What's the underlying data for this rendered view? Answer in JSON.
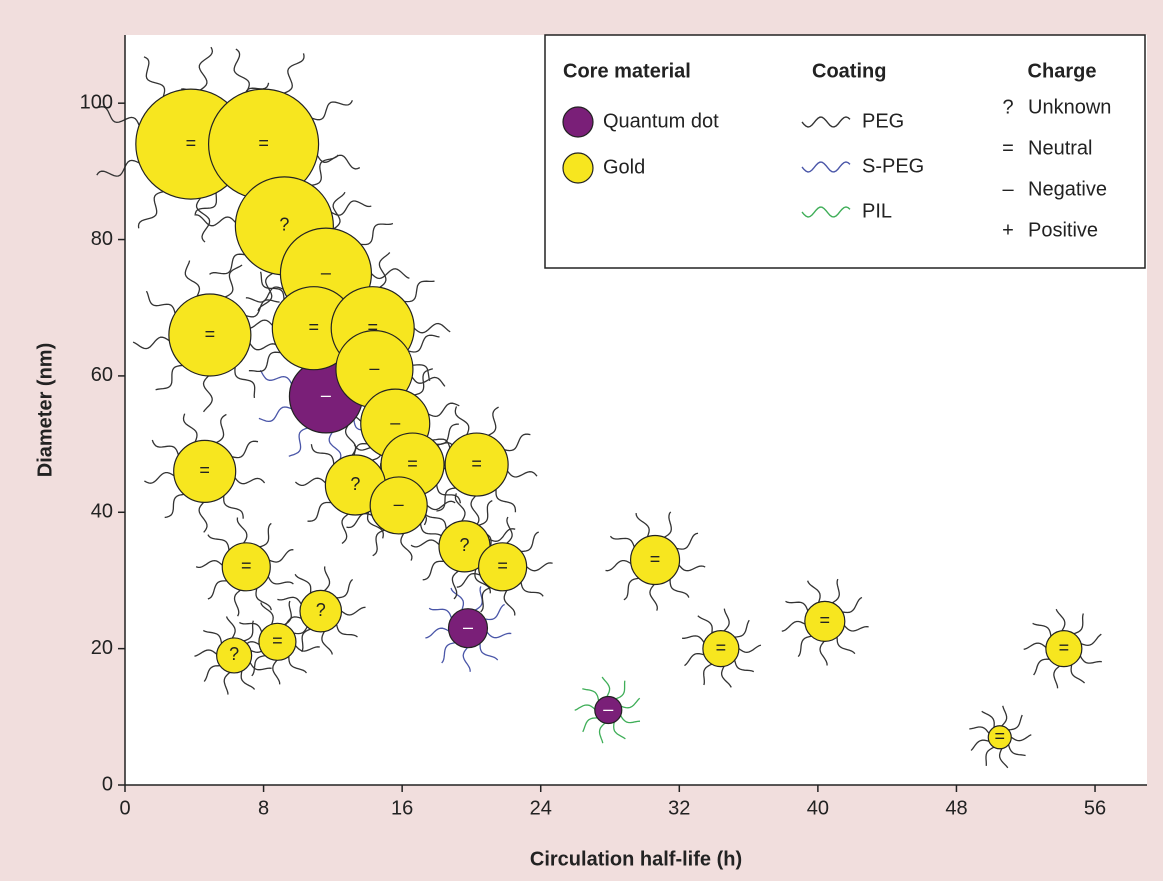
{
  "chart_data": {
    "type": "bubble",
    "xlabel": "Circulation half-life (h)",
    "ylabel": "Diameter (nm)",
    "xlim": [
      0,
      59
    ],
    "ylim": [
      0,
      110
    ],
    "xticks": [
      0,
      8,
      16,
      24,
      32,
      40,
      48,
      56
    ],
    "yticks": [
      0,
      20,
      40,
      60,
      80,
      100
    ],
    "legend": {
      "core_title": "Core material",
      "coating_title": "Coating",
      "charge_title": "Charge",
      "coatings": [
        {
          "name": "PEG",
          "color": "#333333"
        },
        {
          "name": "S-PEG",
          "color": "#4a56a8"
        },
        {
          "name": "PIL",
          "color": "#3fae58"
        }
      ],
      "charges": [
        {
          "symbol": "?",
          "name": "Unknown"
        },
        {
          "symbol": "=",
          "name": "Neutral"
        },
        {
          "symbol": "–",
          "name": "Negative"
        },
        {
          "symbol": "+",
          "name": "Positive"
        }
      ]
    },
    "series": [
      {
        "name": "Quantum dot",
        "color": "#7a1f78",
        "x": [
          11.6,
          19.8,
          27.9
        ],
        "values": [
          57,
          23,
          11
        ],
        "coating": [
          "S-PEG",
          "S-PEG",
          "PIL"
        ],
        "charge": [
          "–",
          "–",
          "–"
        ]
      },
      {
        "name": "Gold",
        "color": "#f7e61f",
        "x": [
          3.8,
          8,
          9.2,
          11.6,
          4.9,
          10.9,
          14.3,
          14.4,
          15.6,
          16.6,
          20.3,
          13.3,
          15.8,
          4.6,
          19.6,
          21.8,
          30.6,
          7,
          11.3,
          8.8,
          6.3,
          34.4,
          40.4,
          54.2,
          50.5
        ],
        "values": [
          94,
          94,
          82,
          75,
          66,
          67,
          67,
          61,
          53,
          47,
          47,
          44,
          41,
          46,
          35,
          32,
          33,
          32,
          25.5,
          21,
          19,
          20,
          24,
          20,
          7
        ],
        "coating": [
          "PEG",
          "PEG",
          "PEG",
          "PEG",
          "PEG",
          "PEG",
          "PEG",
          "PEG",
          "PEG",
          "PEG",
          "PEG",
          "PEG",
          "PEG",
          "PEG",
          "PEG",
          "PEG",
          "PEG",
          "PEG",
          "PEG",
          "PEG",
          "PEG",
          "PEG",
          "PEG",
          "PEG",
          "PEG"
        ],
        "charge": [
          "=",
          "=",
          "?",
          "–",
          "=",
          "=",
          "=",
          "–",
          "–",
          "=",
          "=",
          "?",
          "–",
          "=",
          "?",
          "=",
          "=",
          "=",
          "?",
          "=",
          "?",
          "=",
          "=",
          "=",
          "="
        ]
      }
    ]
  }
}
